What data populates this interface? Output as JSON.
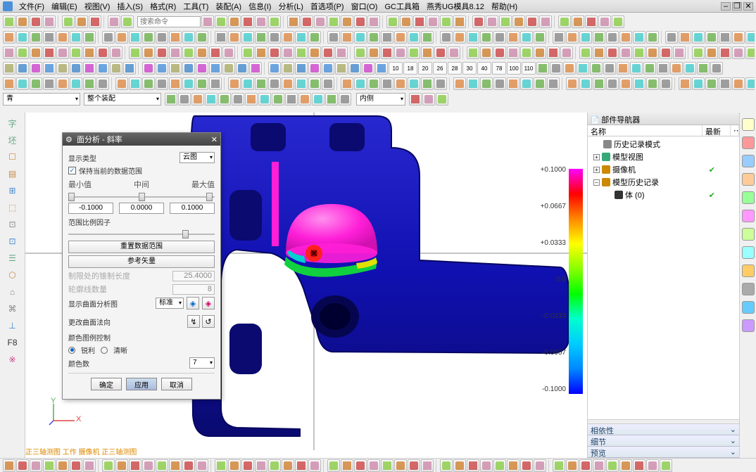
{
  "menu": {
    "items": [
      "文件(F)",
      "编辑(E)",
      "视图(V)",
      "插入(S)",
      "格式(R)",
      "工具(T)",
      "装配(A)",
      "信息(I)",
      "分析(L)",
      "首选项(P)",
      "窗口(O)",
      "GC工具箱",
      "燕秀UG模具8.12",
      "帮助(H)"
    ]
  },
  "window_controls": [
    "–",
    "❐",
    "✕"
  ],
  "toolbar_rows": {
    "r1_search": "搜索命令",
    "filter_dd1": "青",
    "filter_dd2": "整个装配",
    "filter_dd3": "内侧",
    "numbers": [
      "10",
      "18",
      "20",
      "26",
      "28",
      "30",
      "40",
      "78",
      "100",
      "110"
    ]
  },
  "dialog": {
    "title": "面分析 - 斜率",
    "display_type_label": "显示类型",
    "display_type_value": "云图",
    "checkbox_label": "保持当前的数据范围",
    "min_label": "最小值",
    "mid_label": "中间",
    "max_label": "最大值",
    "min_val": "-0.1000",
    "mid_val": "0.0000",
    "max_val": "0.1000",
    "range_factor_label": "范围比例因子",
    "reset_btn": "重置数据范围",
    "ref_btn": "参考矢量",
    "cone_label": "制限处的锥制长度",
    "cone_val": "25.4000",
    "contour_label": "轮廓线数量",
    "contour_val": "8",
    "surf_analysis_label": "显示曲面分析图",
    "surf_analysis_value": "标准",
    "change_dir_label": "更改曲面法向",
    "color_ctrl_label": "颜色图例控制",
    "radio_sharp": "锐利",
    "radio_smooth": "清晰",
    "color_count_label": "颜色数",
    "color_count_val": "7",
    "btn_ok": "确定",
    "btn_apply": "应用",
    "btn_cancel": "取消"
  },
  "nav": {
    "title": "部件导航器",
    "col1": "名称",
    "col2": "最新",
    "items": [
      {
        "label": "历史记录模式",
        "color": "#888",
        "indent": 0
      },
      {
        "label": "模型视图",
        "color": "#3a7",
        "indent": 0,
        "toggle": "+"
      },
      {
        "label": "摄像机",
        "color": "#c80",
        "indent": 0,
        "toggle": "+",
        "check": true
      },
      {
        "label": "模型历史记录",
        "color": "#c80",
        "indent": 0,
        "toggle": "–"
      },
      {
        "label": "体 (0)",
        "color": "#333",
        "indent": 1,
        "check": true
      }
    ],
    "sect1": "相依性",
    "sect2": "细节",
    "sect3": "预览"
  },
  "scale": {
    "labels": [
      "+0.1000",
      "+0.0667",
      "+0.0333",
      "0.0",
      "-0.0333",
      "-0.0667",
      "-0.1000"
    ]
  },
  "axis": {
    "y": "Y",
    "x": "X"
  },
  "statusline": "正三轴测图 工作 摄像机 正三轴测图",
  "leftbar_items": [
    "字",
    "坯",
    "☐",
    "▤",
    "⊞",
    "⬚",
    "⊡",
    "⊡",
    "☰",
    "⬡",
    "⌂",
    "⌘",
    "⊥",
    "F8",
    "※"
  ],
  "rightbar_colors": [
    "#ffc",
    "#f99",
    "#9cf",
    "#fc9",
    "#9f9",
    "#f9f",
    "#cf9",
    "#9ff",
    "#fc6",
    "#aaa",
    "#6cf",
    "#c9f"
  ],
  "part_colors": {
    "body": "#1010b0",
    "body_dark": "#0a0a70",
    "dome": "#ff1fd8",
    "dome_light": "#ff80e8",
    "ring_green": "#10d040",
    "ring_cyan": "#00d0d0",
    "ring_yellow": "#e0e000",
    "center_red": "#ff2020",
    "center_dark": "#aa0000"
  }
}
